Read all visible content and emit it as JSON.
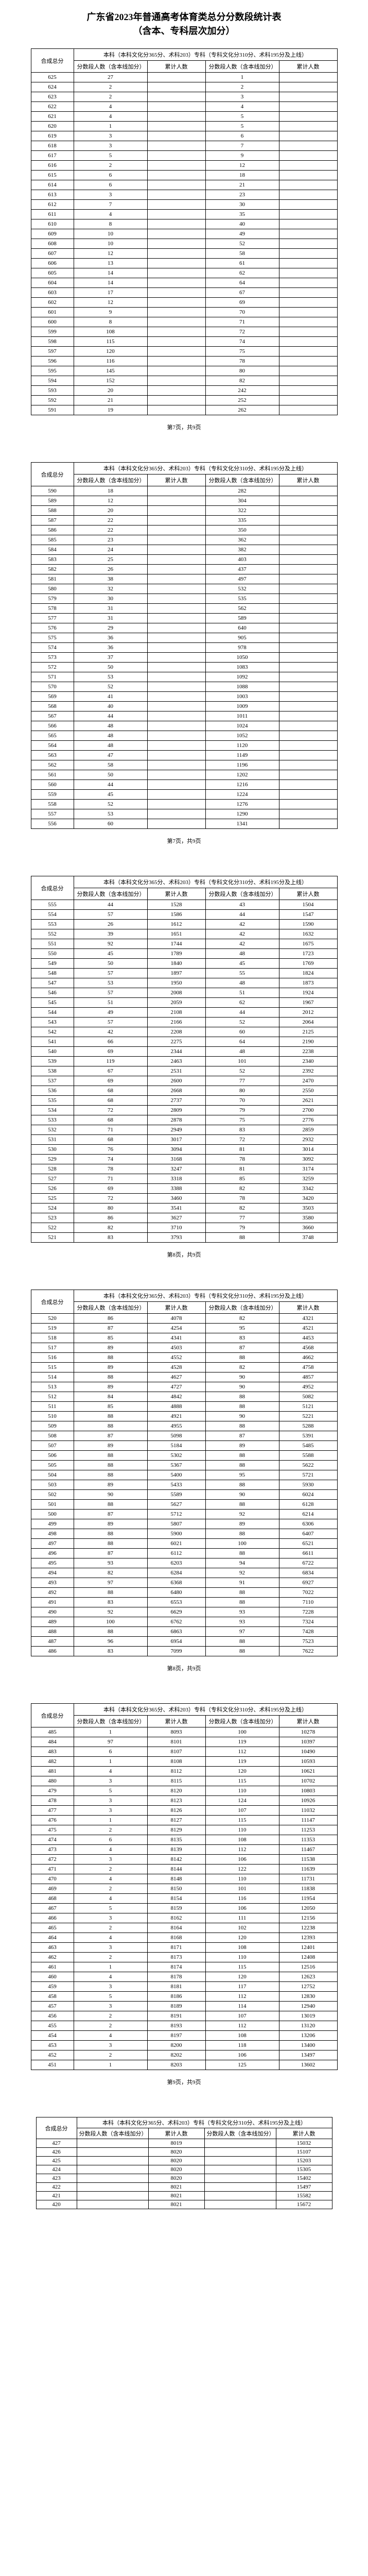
{
  "title": "广东省2023年普通高考体育类总分分数段统计表\n（含本、专科层次加分）",
  "headers": {
    "score": "合成总分",
    "benke_group": "本科（本科文化分365分、术科203）专科（专科文化分310分、术科195分及上线）",
    "benke_sub": "本科上线",
    "zhuanke_sub": "专科上线",
    "seg": "分数段人数（含本线加分）",
    "cum": "累计人数"
  },
  "footers": [
    "第7页，共9页",
    "第7页，共9页",
    "第8页，共9页",
    "第8页，共9页",
    "第9页，共9页"
  ],
  "pages": [
    {
      "rows": [
        [
          "625",
          "27",
          "",
          "1",
          ""
        ],
        [
          "624",
          "2",
          "",
          "2",
          ""
        ],
        [
          "623",
          "2",
          "",
          "3",
          ""
        ],
        [
          "622",
          "4",
          "",
          "4",
          ""
        ],
        [
          "621",
          "4",
          "",
          "5",
          ""
        ],
        [
          "620",
          "1",
          "",
          "5",
          ""
        ],
        [
          "619",
          "3",
          "",
          "6",
          ""
        ],
        [
          "618",
          "3",
          "",
          "7",
          ""
        ],
        [
          "617",
          "5",
          "",
          "9",
          ""
        ],
        [
          "616",
          "2",
          "",
          "12",
          ""
        ],
        [
          "615",
          "6",
          "",
          "18",
          ""
        ],
        [
          "614",
          "6",
          "",
          "21",
          ""
        ],
        [
          "613",
          "3",
          "",
          "23",
          ""
        ],
        [
          "612",
          "7",
          "",
          "30",
          ""
        ],
        [
          "611",
          "4",
          "",
          "35",
          ""
        ],
        [
          "610",
          "8",
          "",
          "40",
          ""
        ],
        [
          "609",
          "10",
          "",
          "49",
          ""
        ],
        [
          "608",
          "10",
          "",
          "52",
          ""
        ],
        [
          "607",
          "12",
          "",
          "58",
          ""
        ],
        [
          "606",
          "13",
          "",
          "61",
          ""
        ],
        [
          "605",
          "14",
          "",
          "62",
          ""
        ],
        [
          "604",
          "14",
          "",
          "64",
          ""
        ],
        [
          "603",
          "17",
          "",
          "67",
          ""
        ],
        [
          "602",
          "12",
          "",
          "69",
          ""
        ],
        [
          "601",
          "9",
          "",
          "70",
          ""
        ],
        [
          "600",
          "8",
          "",
          "71",
          ""
        ],
        [
          "599",
          "108",
          "",
          "72",
          ""
        ],
        [
          "598",
          "115",
          "",
          "74",
          ""
        ],
        [
          "597",
          "120",
          "",
          "75",
          ""
        ],
        [
          "596",
          "116",
          "",
          "78",
          ""
        ],
        [
          "595",
          "145",
          "",
          "80",
          ""
        ],
        [
          "594",
          "152",
          "",
          "82",
          ""
        ],
        [
          "593",
          "20",
          "",
          "242",
          ""
        ],
        [
          "592",
          "21",
          "",
          "252",
          ""
        ],
        [
          "591",
          "19",
          "",
          "262",
          ""
        ]
      ]
    },
    {
      "rows": [
        [
          "590",
          "18",
          "",
          "282",
          ""
        ],
        [
          "589",
          "12",
          "",
          "304",
          ""
        ],
        [
          "588",
          "20",
          "",
          "322",
          ""
        ],
        [
          "587",
          "22",
          "",
          "335",
          ""
        ],
        [
          "586",
          "22",
          "",
          "350",
          ""
        ],
        [
          "585",
          "23",
          "",
          "362",
          ""
        ],
        [
          "584",
          "24",
          "",
          "382",
          ""
        ],
        [
          "583",
          "25",
          "",
          "403",
          ""
        ],
        [
          "582",
          "26",
          "",
          "437",
          ""
        ],
        [
          "581",
          "38",
          "",
          "497",
          ""
        ],
        [
          "580",
          "32",
          "",
          "532",
          ""
        ],
        [
          "579",
          "30",
          "",
          "535",
          ""
        ],
        [
          "578",
          "31",
          "",
          "562",
          ""
        ],
        [
          "577",
          "31",
          "",
          "589",
          ""
        ],
        [
          "576",
          "29",
          "",
          "640",
          ""
        ],
        [
          "575",
          "36",
          "",
          "905",
          ""
        ],
        [
          "574",
          "36",
          "",
          "978",
          ""
        ],
        [
          "573",
          "37",
          "",
          "1050",
          ""
        ],
        [
          "572",
          "50",
          "",
          "1083",
          ""
        ],
        [
          "571",
          "53",
          "",
          "1092",
          ""
        ],
        [
          "570",
          "52",
          "",
          "1088",
          ""
        ],
        [
          "569",
          "41",
          "",
          "1003",
          ""
        ],
        [
          "568",
          "40",
          "",
          "1009",
          ""
        ],
        [
          "567",
          "44",
          "",
          "1011",
          ""
        ],
        [
          "566",
          "48",
          "",
          "1024",
          ""
        ],
        [
          "565",
          "48",
          "",
          "1052",
          ""
        ],
        [
          "564",
          "48",
          "",
          "1120",
          ""
        ],
        [
          "563",
          "47",
          "",
          "1149",
          ""
        ],
        [
          "562",
          "58",
          "",
          "1196",
          ""
        ],
        [
          "561",
          "50",
          "",
          "1202",
          ""
        ],
        [
          "560",
          "44",
          "",
          "1216",
          ""
        ],
        [
          "559",
          "45",
          "",
          "1224",
          ""
        ],
        [
          "558",
          "52",
          "",
          "1276",
          ""
        ],
        [
          "557",
          "53",
          "",
          "1290",
          ""
        ],
        [
          "556",
          "60",
          "",
          "1341",
          ""
        ]
      ]
    },
    {
      "rows": [
        [
          "555",
          "44",
          "1528",
          "43",
          "1504"
        ],
        [
          "554",
          "57",
          "1586",
          "44",
          "1547"
        ],
        [
          "553",
          "26",
          "1612",
          "42",
          "1590"
        ],
        [
          "552",
          "39",
          "1651",
          "42",
          "1632"
        ],
        [
          "551",
          "92",
          "1744",
          "42",
          "1675"
        ],
        [
          "550",
          "45",
          "1789",
          "48",
          "1723"
        ],
        [
          "549",
          "50",
          "1840",
          "45",
          "1769"
        ],
        [
          "548",
          "57",
          "1897",
          "55",
          "1824"
        ],
        [
          "547",
          "53",
          "1950",
          "48",
          "1873"
        ],
        [
          "546",
          "57",
          "2008",
          "51",
          "1924"
        ],
        [
          "545",
          "51",
          "2059",
          "62",
          "1967"
        ],
        [
          "544",
          "49",
          "2108",
          "44",
          "2012"
        ],
        [
          "543",
          "57",
          "2166",
          "52",
          "2064"
        ],
        [
          "542",
          "42",
          "2208",
          "60",
          "2125"
        ],
        [
          "541",
          "66",
          "2275",
          "64",
          "2190"
        ],
        [
          "540",
          "69",
          "2344",
          "48",
          "2238"
        ],
        [
          "539",
          "119",
          "2463",
          "101",
          "2340"
        ],
        [
          "538",
          "67",
          "2531",
          "52",
          "2392"
        ],
        [
          "537",
          "69",
          "2600",
          "77",
          "2470"
        ],
        [
          "536",
          "68",
          "2668",
          "80",
          "2550"
        ],
        [
          "535",
          "68",
          "2737",
          "70",
          "2621"
        ],
        [
          "534",
          "72",
          "2809",
          "79",
          "2700"
        ],
        [
          "533",
          "68",
          "2878",
          "75",
          "2776"
        ],
        [
          "532",
          "71",
          "2949",
          "83",
          "2859"
        ],
        [
          "531",
          "68",
          "3017",
          "72",
          "2932"
        ],
        [
          "530",
          "76",
          "3094",
          "81",
          "3014"
        ],
        [
          "529",
          "74",
          "3168",
          "78",
          "3092"
        ],
        [
          "528",
          "78",
          "3247",
          "81",
          "3174"
        ],
        [
          "527",
          "71",
          "3318",
          "85",
          "3259"
        ],
        [
          "526",
          "69",
          "3388",
          "82",
          "3342"
        ],
        [
          "525",
          "72",
          "3460",
          "78",
          "3420"
        ],
        [
          "524",
          "80",
          "3541",
          "82",
          "3503"
        ],
        [
          "523",
          "86",
          "3627",
          "77",
          "3580"
        ],
        [
          "522",
          "82",
          "3710",
          "79",
          "3660"
        ],
        [
          "521",
          "83",
          "3793",
          "88",
          "3748"
        ]
      ]
    },
    {
      "rows": [
        [
          "520",
          "86",
          "4078",
          "82",
          "4321"
        ],
        [
          "519",
          "87",
          "4254",
          "95",
          "4521"
        ],
        [
          "518",
          "85",
          "4341",
          "83",
          "4453"
        ],
        [
          "517",
          "89",
          "4503",
          "87",
          "4568"
        ],
        [
          "516",
          "88",
          "4552",
          "88",
          "4662"
        ],
        [
          "515",
          "89",
          "4528",
          "82",
          "4758"
        ],
        [
          "514",
          "88",
          "4627",
          "90",
          "4857"
        ],
        [
          "513",
          "89",
          "4727",
          "90",
          "4952"
        ],
        [
          "512",
          "84",
          "4842",
          "88",
          "5082"
        ],
        [
          "511",
          "85",
          "4888",
          "88",
          "5121"
        ],
        [
          "510",
          "88",
          "4921",
          "90",
          "5221"
        ],
        [
          "509",
          "88",
          "4955",
          "88",
          "5288"
        ],
        [
          "508",
          "87",
          "5098",
          "87",
          "5391"
        ],
        [
          "507",
          "89",
          "5184",
          "89",
          "5485"
        ],
        [
          "506",
          "88",
          "5302",
          "88",
          "5588"
        ],
        [
          "505",
          "88",
          "5367",
          "88",
          "5622"
        ],
        [
          "504",
          "88",
          "5400",
          "95",
          "5721"
        ],
        [
          "503",
          "89",
          "5433",
          "88",
          "5930"
        ],
        [
          "502",
          "90",
          "5589",
          "90",
          "6024"
        ],
        [
          "501",
          "88",
          "5627",
          "88",
          "6128"
        ],
        [
          "500",
          "87",
          "5712",
          "92",
          "6214"
        ],
        [
          "499",
          "89",
          "5807",
          "89",
          "6306"
        ],
        [
          "498",
          "88",
          "5900",
          "88",
          "6407"
        ],
        [
          "497",
          "88",
          "6021",
          "100",
          "6521"
        ],
        [
          "496",
          "87",
          "6112",
          "88",
          "6611"
        ],
        [
          "495",
          "93",
          "6203",
          "94",
          "6722"
        ],
        [
          "494",
          "82",
          "6284",
          "92",
          "6834"
        ],
        [
          "493",
          "97",
          "6368",
          "91",
          "6927"
        ],
        [
          "492",
          "88",
          "6480",
          "88",
          "7022"
        ],
        [
          "491",
          "83",
          "6553",
          "88",
          "7110"
        ],
        [
          "490",
          "92",
          "6629",
          "93",
          "7228"
        ],
        [
          "489",
          "100",
          "6762",
          "93",
          "7324"
        ],
        [
          "488",
          "88",
          "6863",
          "97",
          "7428"
        ],
        [
          "487",
          "96",
          "6954",
          "88",
          "7523"
        ],
        [
          "486",
          "83",
          "7099",
          "88",
          "7622"
        ]
      ]
    },
    {
      "rows": [
        [
          "485",
          "1",
          "8093",
          "100",
          "10278"
        ],
        [
          "484",
          "97",
          "8101",
          "119",
          "10397"
        ],
        [
          "483",
          "6",
          "8107",
          "112",
          "10490"
        ],
        [
          "482",
          "1",
          "8108",
          "119",
          "10593"
        ],
        [
          "481",
          "4",
          "8112",
          "120",
          "10621"
        ],
        [
          "480",
          "3",
          "8115",
          "115",
          "10702"
        ],
        [
          "479",
          "5",
          "8120",
          "110",
          "10803"
        ],
        [
          "478",
          "3",
          "8123",
          "124",
          "10926"
        ],
        [
          "477",
          "3",
          "8126",
          "107",
          "11032"
        ],
        [
          "476",
          "1",
          "8127",
          "115",
          "11147"
        ],
        [
          "475",
          "2",
          "8129",
          "110",
          "11253"
        ],
        [
          "474",
          "6",
          "8135",
          "108",
          "11353"
        ],
        [
          "473",
          "4",
          "8139",
          "112",
          "11467"
        ],
        [
          "472",
          "3",
          "8142",
          "106",
          "11538"
        ],
        [
          "471",
          "2",
          "8144",
          "122",
          "11639"
        ],
        [
          "470",
          "4",
          "8148",
          "110",
          "11731"
        ],
        [
          "469",
          "2",
          "8150",
          "101",
          "11838"
        ],
        [
          "468",
          "4",
          "8154",
          "116",
          "11954"
        ],
        [
          "467",
          "5",
          "8159",
          "106",
          "12050"
        ],
        [
          "466",
          "3",
          "8162",
          "111",
          "12156"
        ],
        [
          "465",
          "2",
          "8164",
          "102",
          "12238"
        ],
        [
          "464",
          "4",
          "8168",
          "120",
          "12393"
        ],
        [
          "463",
          "3",
          "8171",
          "108",
          "12401"
        ],
        [
          "462",
          "2",
          "8173",
          "110",
          "12408"
        ],
        [
          "461",
          "1",
          "8174",
          "115",
          "12516"
        ],
        [
          "460",
          "4",
          "8178",
          "120",
          "12623"
        ],
        [
          "459",
          "3",
          "8181",
          "117",
          "12752"
        ],
        [
          "458",
          "5",
          "8186",
          "112",
          "12830"
        ],
        [
          "457",
          "3",
          "8189",
          "114",
          "12940"
        ],
        [
          "456",
          "2",
          "8191",
          "107",
          "13019"
        ],
        [
          "455",
          "2",
          "8193",
          "112",
          "13120"
        ],
        [
          "454",
          "4",
          "8197",
          "108",
          "13206"
        ],
        [
          "453",
          "3",
          "8200",
          "118",
          "13400"
        ],
        [
          "452",
          "2",
          "8202",
          "106",
          "13497"
        ],
        [
          "451",
          "1",
          "8203",
          "125",
          "13602"
        ]
      ]
    },
    {
      "rows": [
        [
          "427",
          "",
          "8019",
          "",
          "15032"
        ],
        [
          "426",
          "",
          "8020",
          "",
          "15107"
        ],
        [
          "425",
          "",
          "8020",
          "",
          "15203"
        ],
        [
          "424",
          "",
          "8020",
          "",
          "15305"
        ],
        [
          "423",
          "",
          "8020",
          "",
          "15402"
        ],
        [
          "422",
          "",
          "8021",
          "",
          "15497"
        ],
        [
          "421",
          "",
          "8021",
          "",
          "15582"
        ],
        [
          "420",
          "",
          "8021",
          "",
          "15672"
        ]
      ]
    }
  ]
}
